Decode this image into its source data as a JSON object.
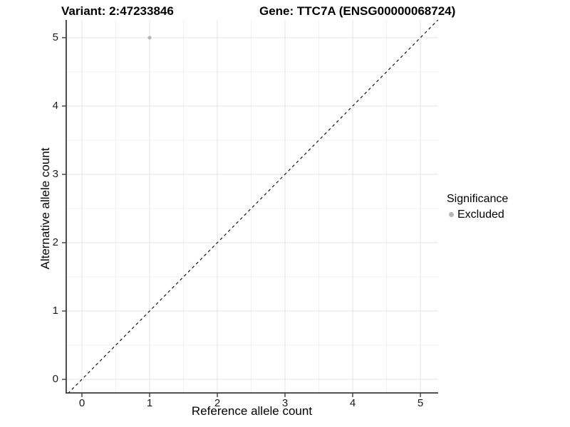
{
  "chart_data": {
    "type": "scatter",
    "title_left": "Variant: 2:47233846",
    "title_right": "Gene: TTC7A (ENSG00000068724)",
    "xlabel": "Reference allele count",
    "ylabel": "Alternative allele count",
    "xlim": [
      -0.242,
      5.263
    ],
    "ylim": [
      -0.208,
      5.26
    ],
    "x_ticks": [
      0,
      1,
      2,
      3,
      4,
      5
    ],
    "y_ticks": [
      0,
      1,
      2,
      3,
      4,
      5
    ],
    "minor_ticks": [
      0.5,
      1.5,
      2.5,
      3.5,
      4.5
    ],
    "grid": "major and minor, light grey on white panel",
    "identity_line": {
      "equation": "y = x",
      "style": "dashed",
      "color": "#111111"
    },
    "series": [
      {
        "name": "Excluded",
        "color": "#b5b5b5",
        "marker": "circle",
        "points": [
          {
            "x": 1,
            "y": 5
          }
        ]
      }
    ],
    "legend": {
      "title": "Significance",
      "position": "right",
      "entries": [
        {
          "label": "Excluded",
          "color": "#b5b5b5",
          "marker": "circle"
        }
      ]
    },
    "style": {
      "grid_major_color": "#e5e5e5",
      "grid_minor_color": "#f2f2f2",
      "axis_line_color": "#3a3a3a",
      "panel_background": "#ffffff",
      "point_radius_px": 2.6
    }
  }
}
